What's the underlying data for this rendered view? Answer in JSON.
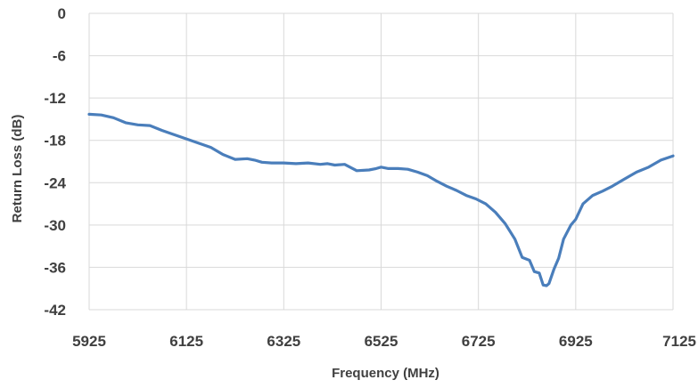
{
  "chart_data": {
    "type": "line",
    "title": "",
    "xlabel": "Frequency (MHz)",
    "ylabel": "Return Loss (dB)",
    "xlim": [
      5925,
      7125
    ],
    "ylim": [
      -42,
      0
    ],
    "xticks": [
      "5925",
      "6125",
      "6325",
      "6525",
      "6725",
      "6925",
      "7125"
    ],
    "yticks": [
      "0",
      "-6",
      "-12",
      "-18",
      "-24",
      "-30",
      "-36",
      "-42"
    ],
    "grid": true,
    "legend": "none",
    "colors": {
      "series": "#4a7ebb",
      "grid": "#d9d9d9",
      "text": "#404040"
    },
    "series": [
      {
        "x": [
          5925,
          5950,
          5975,
          6000,
          6025,
          6050,
          6075,
          6100,
          6125,
          6150,
          6175,
          6200,
          6225,
          6250,
          6265,
          6280,
          6300,
          6325,
          6350,
          6375,
          6400,
          6415,
          6430,
          6450,
          6475,
          6500,
          6515,
          6525,
          6540,
          6560,
          6580,
          6600,
          6620,
          6640,
          6660,
          6680,
          6700,
          6720,
          6740,
          6760,
          6780,
          6800,
          6815,
          6830,
          6840,
          6850,
          6858,
          6865,
          6870,
          6880,
          6890,
          6900,
          6915,
          6925,
          6940,
          6960,
          6980,
          7000,
          7025,
          7050,
          7075,
          7100,
          7125
        ],
        "y": [
          -14.3,
          -14.4,
          -14.8,
          -15.5,
          -15.8,
          -15.9,
          -16.6,
          -17.2,
          -17.8,
          -18.4,
          -19.0,
          -20.0,
          -20.7,
          -20.6,
          -20.8,
          -21.1,
          -21.2,
          -21.2,
          -21.3,
          -21.2,
          -21.4,
          -21.3,
          -21.5,
          -21.4,
          -22.3,
          -22.2,
          -22.0,
          -21.8,
          -22.0,
          -22.0,
          -22.1,
          -22.5,
          -23.0,
          -23.8,
          -24.5,
          -25.1,
          -25.8,
          -26.3,
          -27.0,
          -28.2,
          -29.8,
          -32.0,
          -34.6,
          -35.0,
          -36.6,
          -36.8,
          -38.5,
          -38.6,
          -38.3,
          -36.3,
          -34.7,
          -32.0,
          -30.0,
          -29.2,
          -27.0,
          -25.8,
          -25.2,
          -24.5,
          -23.5,
          -22.5,
          -21.8,
          -20.8,
          -20.2
        ]
      }
    ]
  }
}
